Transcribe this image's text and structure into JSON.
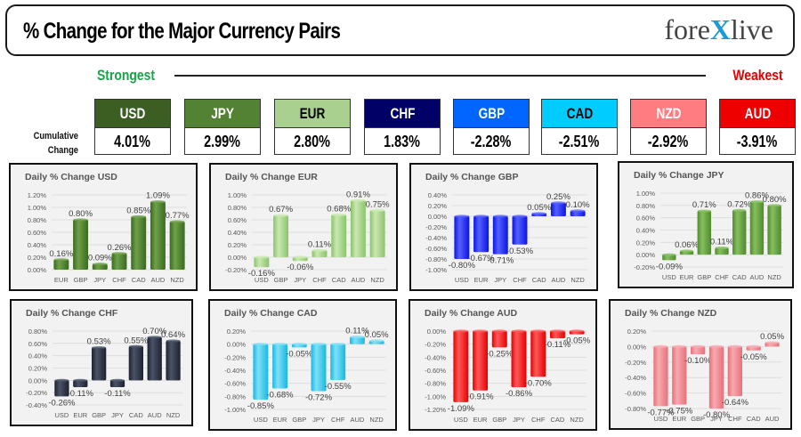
{
  "header": {
    "title": "% Change for the Major Currency Pairs",
    "logo_left": "fore",
    "logo_x": "X",
    "logo_right": "live"
  },
  "ranking": {
    "strongest_label": "Strongest",
    "weakest_label": "Weakest",
    "cumulative_label_line1": "Cumulative",
    "cumulative_label_line2": "Change"
  },
  "tiles": [
    {
      "currency": "USD",
      "value": "4.01%",
      "bg": "#3c5e22",
      "fg": "#ffffff"
    },
    {
      "currency": "JPY",
      "value": "2.99%",
      "bg": "#548235",
      "fg": "#ffffff"
    },
    {
      "currency": "EUR",
      "value": "2.80%",
      "bg": "#a9d08e",
      "fg": "#000000"
    },
    {
      "currency": "CHF",
      "value": "1.83%",
      "bg": "#000066",
      "fg": "#ffffff"
    },
    {
      "currency": "GBP",
      "value": "-2.28%",
      "bg": "#0066ff",
      "fg": "#ffffff"
    },
    {
      "currency": "CAD",
      "value": "-2.51%",
      "bg": "#00ccff",
      "fg": "#000000"
    },
    {
      "currency": "NZD",
      "value": "-2.92%",
      "bg": "#ff7c80",
      "fg": "#ffffff"
    },
    {
      "currency": "AUD",
      "value": "-3.91%",
      "bg": "#ee0000",
      "fg": "#ffffff"
    }
  ],
  "chart_data": [
    {
      "type": "bar",
      "title": "Daily % Change USD",
      "categories": [
        "EUR",
        "GBP",
        "JPY",
        "CHF",
        "CAD",
        "AUD",
        "NZD"
      ],
      "values": [
        0.16,
        0.8,
        0.09,
        0.26,
        0.85,
        1.09,
        0.77
      ],
      "labels": [
        "0.16%",
        "0.80%",
        "0.09%",
        "0.26%",
        "0.85%",
        "1.09%",
        "0.77%"
      ],
      "yticks": [
        0,
        0.2,
        0.4,
        0.6,
        0.8,
        1.0,
        1.2
      ],
      "ylim": [
        0,
        1.2
      ],
      "color": "#3a6b1f",
      "highlight": "#6fa04a"
    },
    {
      "type": "bar",
      "title": "Daily % Change EUR",
      "categories": [
        "USD",
        "GBP",
        "JPY",
        "CHF",
        "CAD",
        "AUD",
        "NZD"
      ],
      "values": [
        -0.16,
        0.67,
        -0.06,
        0.11,
        0.68,
        0.91,
        0.75
      ],
      "labels": [
        "-0.16%",
        "0.67%",
        "-0.06%",
        "0.11%",
        "0.68%",
        "0.91%",
        "0.75%"
      ],
      "yticks": [
        -0.2,
        0,
        0.2,
        0.4,
        0.6,
        0.8,
        1.0
      ],
      "ylim": [
        -0.2,
        1.0
      ],
      "color": "#8cc36a",
      "highlight": "#c9e8b2"
    },
    {
      "type": "bar",
      "title": "Daily % Change GBP",
      "categories": [
        "USD",
        "EUR",
        "JPY",
        "CHF",
        "CAD",
        "AUD",
        "NZD"
      ],
      "values": [
        -0.8,
        -0.67,
        -0.71,
        -0.53,
        0.05,
        0.25,
        0.1
      ],
      "labels": [
        "-0.80%",
        "-0.67%",
        "-0.71%",
        "-0.53%",
        "0.05%",
        "0.25%",
        "0.10%"
      ],
      "yticks": [
        -1.0,
        -0.8,
        -0.6,
        -0.4,
        -0.2,
        0,
        0.2,
        0.4
      ],
      "ylim": [
        -1.0,
        0.4
      ],
      "color": "#0a14e6",
      "highlight": "#5560ff"
    },
    {
      "type": "bar",
      "title": "Daily % Change JPY",
      "categories": [
        "USD",
        "EUR",
        "GBP",
        "CHF",
        "CAD",
        "AUD",
        "NZD"
      ],
      "values": [
        -0.09,
        0.06,
        0.71,
        0.11,
        0.72,
        0.86,
        0.8
      ],
      "labels": [
        "-0.09%",
        "0.06%",
        "0.71%",
        "0.11%",
        "0.72%",
        "0.86%",
        "0.80%"
      ],
      "yticks": [
        -0.2,
        0,
        0.2,
        0.4,
        0.6,
        0.8,
        1.0
      ],
      "ylim": [
        -0.2,
        1.0
      ],
      "color": "#4f8a2c",
      "highlight": "#86bf5f"
    },
    {
      "type": "bar",
      "title": "Daily % Change CHF",
      "categories": [
        "USD",
        "EUR",
        "GBP",
        "JPY",
        "CAD",
        "AUD",
        "NZD"
      ],
      "values": [
        -0.26,
        -0.11,
        0.53,
        -0.11,
        0.55,
        0.7,
        0.64
      ],
      "labels": [
        "-0.26%",
        "-0.11%",
        "0.53%",
        "-0.11%",
        "0.55%",
        "0.70%",
        "0.64%"
      ],
      "yticks": [
        -0.4,
        -0.2,
        0,
        0.2,
        0.4,
        0.6,
        0.8
      ],
      "ylim": [
        -0.4,
        0.8
      ],
      "color": "#1c2230",
      "highlight": "#4a5366"
    },
    {
      "type": "bar",
      "title": "Daily % Change CAD",
      "categories": [
        "USD",
        "EUR",
        "GBP",
        "JPY",
        "CHF",
        "AUD",
        "NZD"
      ],
      "values": [
        -0.85,
        -0.68,
        -0.05,
        -0.72,
        -0.55,
        0.11,
        0.05
      ],
      "labels": [
        "-0.85%",
        "-0.68%",
        "-0.05%",
        "-0.72%",
        "-0.55%",
        "0.11%",
        "0.05%"
      ],
      "yticks": [
        -1.0,
        -0.8,
        -0.6,
        -0.4,
        -0.2,
        0,
        0.2
      ],
      "ylim": [
        -1.0,
        0.2
      ],
      "color": "#1ab8e0",
      "highlight": "#7fe0f7"
    },
    {
      "type": "bar",
      "title": "Daily % Change AUD",
      "categories": [
        "USD",
        "EUR",
        "GBP",
        "JPY",
        "CHF",
        "CAD",
        "NZD"
      ],
      "values": [
        -1.09,
        -0.91,
        -0.25,
        -0.86,
        -0.7,
        -0.11,
        -0.05
      ],
      "labels": [
        "-1.09%",
        "-0.91%",
        "-0.25%",
        "-0.86%",
        "-0.70%",
        "-0.11%",
        "-0.05%"
      ],
      "yticks": [
        -1.2,
        -1.0,
        -0.8,
        -0.6,
        -0.4,
        -0.2,
        0
      ],
      "ylim": [
        -1.2,
        0
      ],
      "color": "#e60000",
      "highlight": "#ff5a5a"
    },
    {
      "type": "bar",
      "title": "Daily % Change NZD",
      "categories": [
        "USD",
        "EUR",
        "GBP",
        "JPY",
        "CHF",
        "CAD",
        "AUD"
      ],
      "values": [
        -0.77,
        -0.75,
        -0.1,
        -0.8,
        -0.64,
        -0.05,
        0.05
      ],
      "labels": [
        "-0.77%",
        "-0.75%",
        "-0.10%",
        "-0.80%",
        "-0.64%",
        "-0.05%",
        "0.05%"
      ],
      "yticks": [
        -0.8,
        -0.6,
        -0.4,
        -0.2,
        0,
        0.2
      ],
      "ylim": [
        -0.8,
        0.2
      ],
      "color": "#e8707a",
      "highlight": "#f7aab0"
    }
  ]
}
